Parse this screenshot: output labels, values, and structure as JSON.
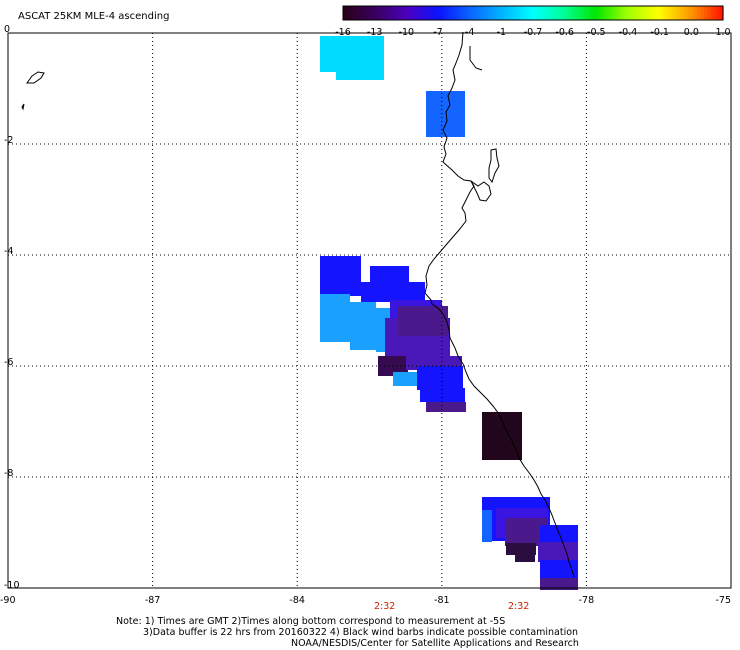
{
  "title": "ASCAT 25KM MLE-4 ascending",
  "colorbar": {
    "labels": [
      "-16",
      "-13",
      "-10",
      "-7",
      "-4",
      "-1",
      "-0.7",
      "-0.6",
      "-0.5",
      "-0.4",
      "-0.1",
      "0.0",
      "1.0"
    ],
    "colors": [
      "#2a0018",
      "#3a0060",
      "#4b00c0",
      "#0a14ff",
      "#0a64ff",
      "#00b4ff",
      "#00ffff",
      "#00ff96",
      "#00e600",
      "#a0ff00",
      "#ffff00",
      "#ff9a00",
      "#ff1800"
    ]
  },
  "axes": {
    "x_ticks": [
      "-90",
      "-87",
      "-84",
      "-81",
      "-78",
      "-75"
    ],
    "y_ticks": [
      "0",
      "-2",
      "-4",
      "-6",
      "-8",
      "-10"
    ]
  },
  "time_labels": [
    "2:32",
    "2:32"
  ],
  "notes": {
    "line1": "Note: 1) Times are GMT 2)Times along bottom correspond to measurement at -5S",
    "line2": "3)Data buffer is 22 hrs from 20160322 4) Black wind barbs indicate possible contamination",
    "line3": "NOAA/NESDIS/Center for Satellite Applications and Research"
  }
}
